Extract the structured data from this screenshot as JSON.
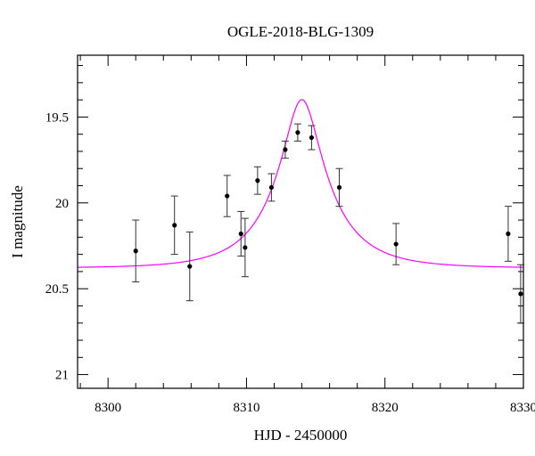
{
  "chart_data": {
    "type": "scatter",
    "title": "OGLE-2018-BLG-1309",
    "xlabel": "HJD - 2450000",
    "ylabel": "I magnitude",
    "xlim": [
      8297.8,
      8330
    ],
    "ylim": [
      21.08,
      19.14
    ],
    "y_inverted": true,
    "grid": false,
    "x_ticks": [
      8300,
      8310,
      8320,
      8330
    ],
    "x_tick_labels": [
      "8300",
      "8310",
      "8320",
      "8330"
    ],
    "y_ticks": [
      19.5,
      20,
      20.5,
      21
    ],
    "y_tick_labels": [
      "19.5",
      "20",
      "20.5",
      "21"
    ],
    "points": [
      {
        "x": 8302.0,
        "y": 20.28,
        "err": 0.18
      },
      {
        "x": 8304.8,
        "y": 20.13,
        "err": 0.17
      },
      {
        "x": 8305.9,
        "y": 20.37,
        "err": 0.2
      },
      {
        "x": 8308.6,
        "y": 19.96,
        "err": 0.12
      },
      {
        "x": 8309.6,
        "y": 20.18,
        "err": 0.13
      },
      {
        "x": 8309.9,
        "y": 20.26,
        "err": 0.17
      },
      {
        "x": 8310.8,
        "y": 19.87,
        "err": 0.08
      },
      {
        "x": 8311.8,
        "y": 19.91,
        "err": 0.08
      },
      {
        "x": 8312.8,
        "y": 19.69,
        "err": 0.05
      },
      {
        "x": 8313.7,
        "y": 19.59,
        "err": 0.05
      },
      {
        "x": 8314.7,
        "y": 19.62,
        "err": 0.07
      },
      {
        "x": 8316.7,
        "y": 19.91,
        "err": 0.11
      },
      {
        "x": 8320.8,
        "y": 20.24,
        "err": 0.12
      },
      {
        "x": 8328.9,
        "y": 20.18,
        "err": 0.16
      },
      {
        "x": 8329.8,
        "y": 20.53,
        "err": 0.17
      }
    ],
    "model": {
      "t0": 8314.0,
      "tE": 4.3,
      "u0": 0.29,
      "base_mag": 20.38,
      "fs": 0.575,
      "color": "#ff00ff"
    },
    "point_color": "#000000",
    "axis_color": "#000000"
  }
}
